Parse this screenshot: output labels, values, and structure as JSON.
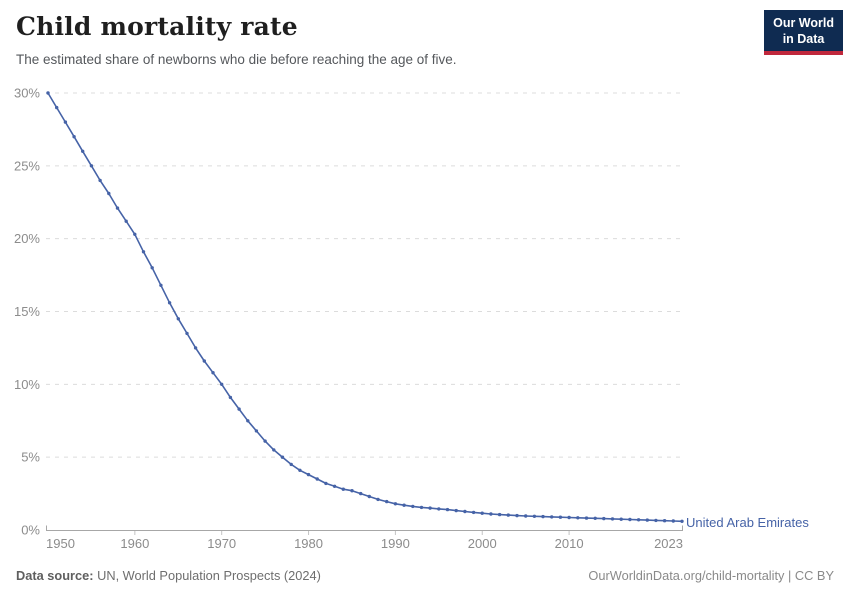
{
  "header": {
    "title": "Child mortality rate",
    "subtitle": "The estimated share of newborns who die before reaching the age of five.",
    "logo": {
      "line1": "Our World",
      "line2": "in Data"
    }
  },
  "chart_data": {
    "type": "line",
    "title": "Child mortality rate",
    "xlabel": "",
    "ylabel": "",
    "xlim": [
      1950,
      2023
    ],
    "ylim": [
      0,
      30
    ],
    "grid": "horizontal-dashed",
    "legend_position": "end-of-line-label",
    "x_ticks": [
      1950,
      1960,
      1970,
      1980,
      1990,
      2000,
      2010,
      2023
    ],
    "y_ticks": [
      0,
      5,
      10,
      15,
      20,
      25,
      30
    ],
    "y_tick_suffix": "%",
    "series": [
      {
        "name": "United Arab Emirates",
        "color": "#4663a7",
        "x": [
          1950,
          1951,
          1952,
          1953,
          1954,
          1955,
          1956,
          1957,
          1958,
          1959,
          1960,
          1961,
          1962,
          1963,
          1964,
          1965,
          1966,
          1967,
          1968,
          1969,
          1970,
          1971,
          1972,
          1973,
          1974,
          1975,
          1976,
          1977,
          1978,
          1979,
          1980,
          1981,
          1982,
          1983,
          1984,
          1985,
          1986,
          1987,
          1988,
          1989,
          1990,
          1991,
          1992,
          1993,
          1994,
          1995,
          1996,
          1997,
          1998,
          1999,
          2000,
          2001,
          2002,
          2003,
          2004,
          2005,
          2006,
          2007,
          2008,
          2009,
          2010,
          2011,
          2012,
          2013,
          2014,
          2015,
          2016,
          2017,
          2018,
          2019,
          2020,
          2021,
          2022,
          2023
        ],
        "values": [
          30.0,
          29.0,
          28.0,
          27.0,
          26.0,
          25.0,
          24.0,
          23.1,
          22.1,
          21.2,
          20.3,
          19.1,
          18.0,
          16.8,
          15.6,
          14.5,
          13.5,
          12.5,
          11.6,
          10.8,
          10.0,
          9.1,
          8.3,
          7.5,
          6.8,
          6.1,
          5.5,
          5.0,
          4.5,
          4.1,
          3.8,
          3.5,
          3.2,
          3.0,
          2.8,
          2.7,
          2.5,
          2.3,
          2.1,
          1.95,
          1.8,
          1.7,
          1.62,
          1.55,
          1.5,
          1.45,
          1.4,
          1.33,
          1.27,
          1.21,
          1.15,
          1.1,
          1.06,
          1.02,
          0.99,
          0.96,
          0.94,
          0.92,
          0.9,
          0.88,
          0.86,
          0.84,
          0.82,
          0.8,
          0.78,
          0.76,
          0.74,
          0.72,
          0.7,
          0.68,
          0.66,
          0.64,
          0.62,
          0.6
        ]
      }
    ]
  },
  "footer": {
    "source_label": "Data source:",
    "source_text": " UN, World Population Prospects (2024)",
    "link_text": "OurWorldinData.org/child-mortality | CC BY"
  },
  "colors": {
    "line": "#4663a7",
    "gridline": "#dcdcdc",
    "axis_line": "#a7a7a7",
    "tick_mark": "#c4c4c4",
    "tick_label": "#8c8c8c",
    "title": "#1f1f1f",
    "subtitle": "#55585c",
    "logo_background": "#0f2b51",
    "logo_red": "#c0283c"
  }
}
